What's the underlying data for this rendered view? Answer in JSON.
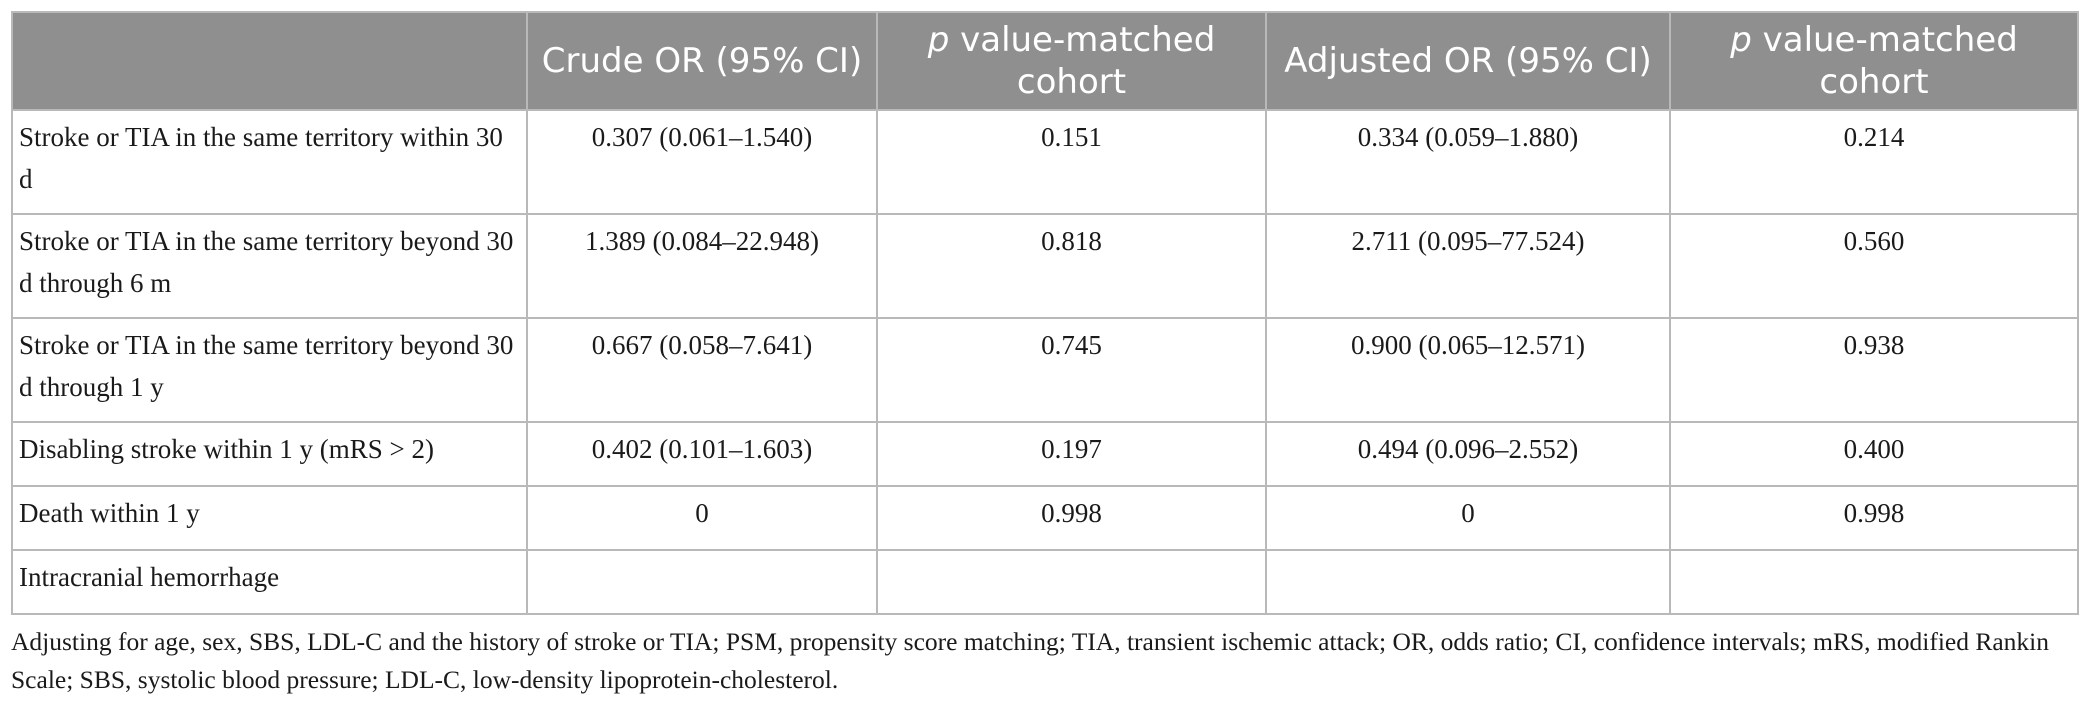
{
  "table": {
    "headers": [
      "",
      "Crude OR (95% CI)",
      "value-matched cohort",
      "Adjusted OR (95% CI)",
      "value-matched cohort"
    ],
    "header_italic_prefix": "p",
    "rows": [
      [
        "Stroke or TIA in the same territory within 30 d",
        "0.307 (0.061–1.540)",
        "0.151",
        "0.334 (0.059–1.880)",
        "0.214"
      ],
      [
        "Stroke or TIA in the same territory beyond 30 d through 6 m",
        "1.389 (0.084–22.948)",
        "0.818",
        "2.711 (0.095–77.524)",
        "0.560"
      ],
      [
        "Stroke or TIA in the same territory beyond 30 d through 1 y",
        "0.667 (0.058–7.641)",
        "0.745",
        "0.900 (0.065–12.571)",
        "0.938"
      ],
      [
        "Disabling stroke within 1 y (mRS > 2)",
        "0.402 (0.101–1.603)",
        "0.197",
        "0.494 (0.096–2.552)",
        "0.400"
      ],
      [
        "Death within 1 y",
        "0",
        "0.998",
        "0",
        "0.998"
      ],
      [
        "Intracranial hemorrhage",
        "",
        "",
        "",
        ""
      ]
    ]
  },
  "footnote": "Adjusting for age, sex, SBS, LDL-C and the history of stroke or TIA; PSM, propensity score matching; TIA, transient ischemic attack; OR, odds ratio; CI, confidence intervals; mRS, modified Rankin Scale; SBS, systolic blood pressure; LDL-C, low-density lipoprotein-cholesterol.",
  "colors": {
    "header_bg": "#8f8f8f",
    "header_text": "#ffffff",
    "grid": "#b9b9b9",
    "body_text": "#1a1a1a"
  }
}
